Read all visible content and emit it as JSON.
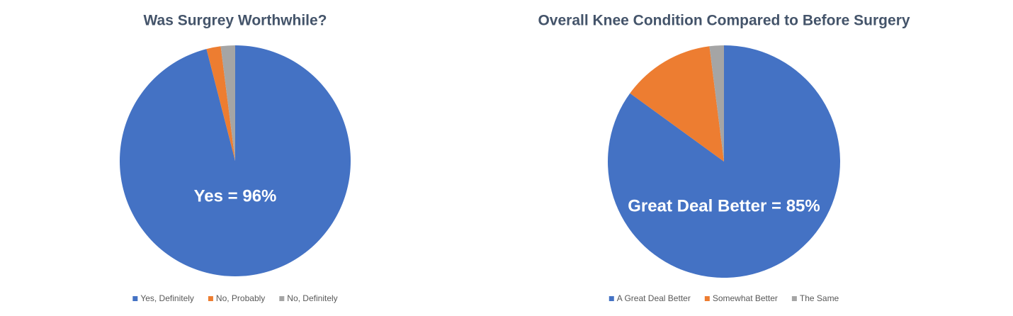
{
  "chart_data": [
    {
      "type": "pie",
      "title": "Was Surgrey Worthwhile?",
      "annotation": "Yes = 96%",
      "categories": [
        "Yes, Definitely",
        "No, Probably",
        "No, Definitely"
      ],
      "values": [
        96,
        2,
        2
      ],
      "colors": [
        "#4472c4",
        "#ed7d31",
        "#a5a5a5"
      ]
    },
    {
      "type": "pie",
      "title": "Overall Knee Condition Compared to Before Surgery",
      "annotation": "Great Deal Better = 85%",
      "categories": [
        "A Great Deal Better",
        "Somewhat Better",
        "The Same"
      ],
      "values": [
        85,
        13,
        2
      ],
      "colors": [
        "#4472c4",
        "#ed7d31",
        "#a5a5a5"
      ]
    }
  ]
}
